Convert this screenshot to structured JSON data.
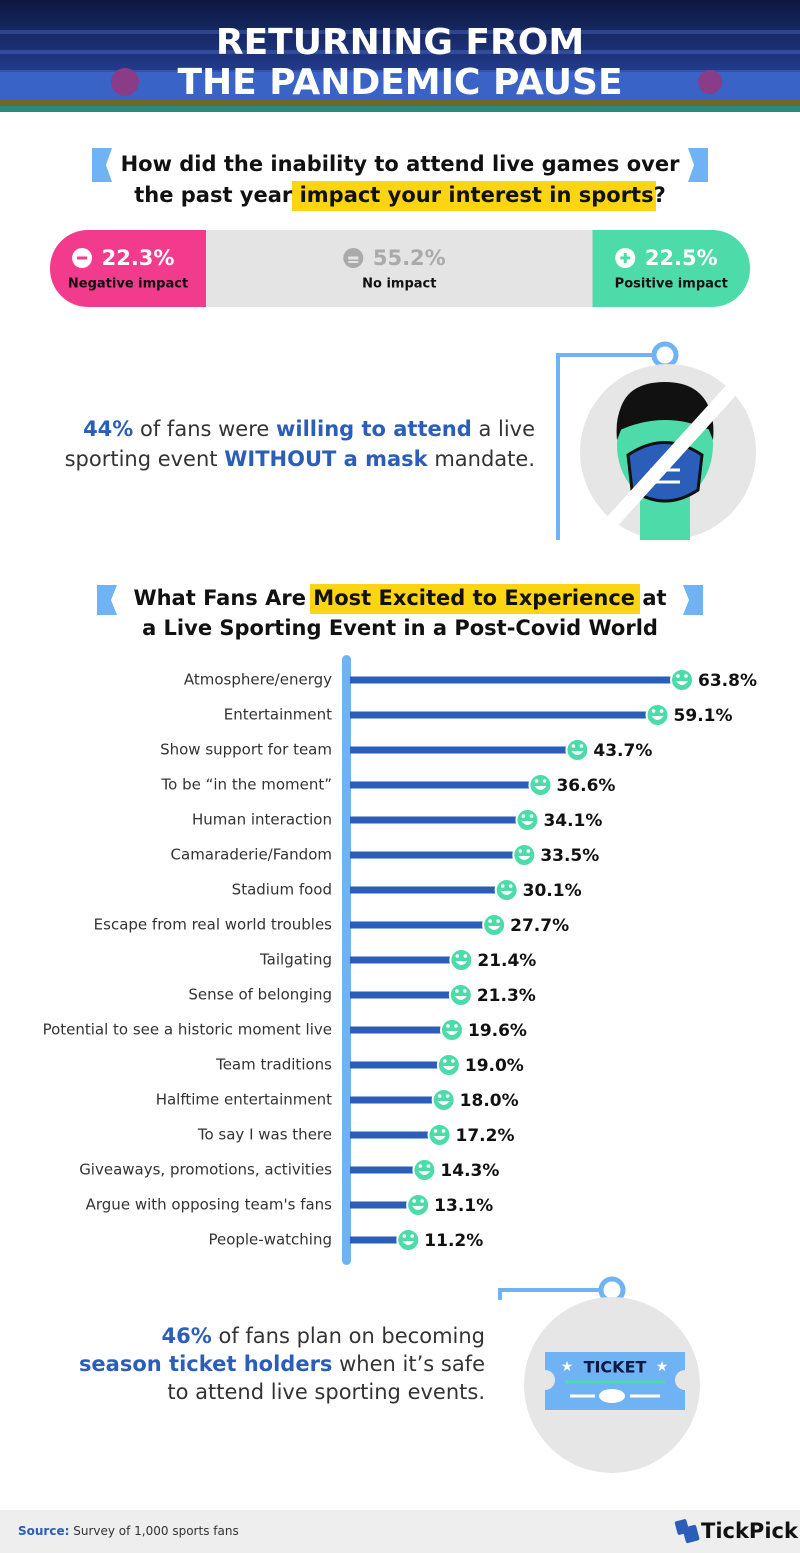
{
  "header": {
    "title": [
      "RETURNING FROM",
      "THE PANDEMIC PAUSE"
    ]
  },
  "chart_data": [
    {
      "type": "stacked-bar",
      "title": [
        "How did the inability to attend live games over",
        "the past year",
        "impact your interest in sports",
        "?"
      ],
      "categories": [
        "Negative impact",
        "No impact",
        "Positive impact"
      ],
      "values": [
        22.3,
        55.2,
        22.5
      ],
      "value_labels": [
        "22.3%",
        "55.2%",
        "22.5%"
      ],
      "colors": [
        "#f23b8d",
        "#e4e4e4",
        "#4ddca9"
      ]
    },
    {
      "type": "bar",
      "title": [
        "What Fans Are",
        "Most Excited to Experience",
        "at",
        "a Live Sporting Event in a Post-Covid World"
      ],
      "categories": [
        "Atmosphere/energy",
        "Entertainment",
        "Show support for team",
        "To be “in the moment”",
        "Human interaction",
        "Camaraderie/Fandom",
        "Stadium food",
        "Escape from real world troubles",
        "Tailgating",
        "Sense of belonging",
        "Potential to see a historic moment live",
        "Team traditions",
        "Halftime entertainment",
        "To say I was there",
        "Giveaways, promotions, activities",
        "Argue with opposing team's fans",
        "People-watching"
      ],
      "values": [
        63.8,
        59.1,
        43.7,
        36.6,
        34.1,
        33.5,
        30.1,
        27.7,
        21.4,
        21.3,
        19.6,
        19.0,
        18.0,
        17.2,
        14.3,
        13.1,
        11.2
      ],
      "value_labels": [
        "63.8%",
        "59.1%",
        "43.7%",
        "36.6%",
        "34.1%",
        "33.5%",
        "30.1%",
        "27.7%",
        "21.4%",
        "21.3%",
        "19.6%",
        "19.0%",
        "18.0%",
        "17.2%",
        "14.3%",
        "13.1%",
        "11.2%"
      ],
      "color": "#2a5eb8"
    }
  ],
  "mask_stat": [
    "44%",
    "of fans were",
    "willing to attend",
    "a live",
    "sporting event",
    "WITHOUT a mask",
    "mandate."
  ],
  "ticket_stat": [
    "46%",
    "of fans plan on becoming",
    "season ticket holders",
    "when it’s safe",
    "to attend live sporting events."
  ],
  "ticket_icon": "TICKET",
  "footer": {
    "source_label": "Source:",
    "source": "Survey of 1,000 sports fans",
    "logo": "TickPick"
  }
}
